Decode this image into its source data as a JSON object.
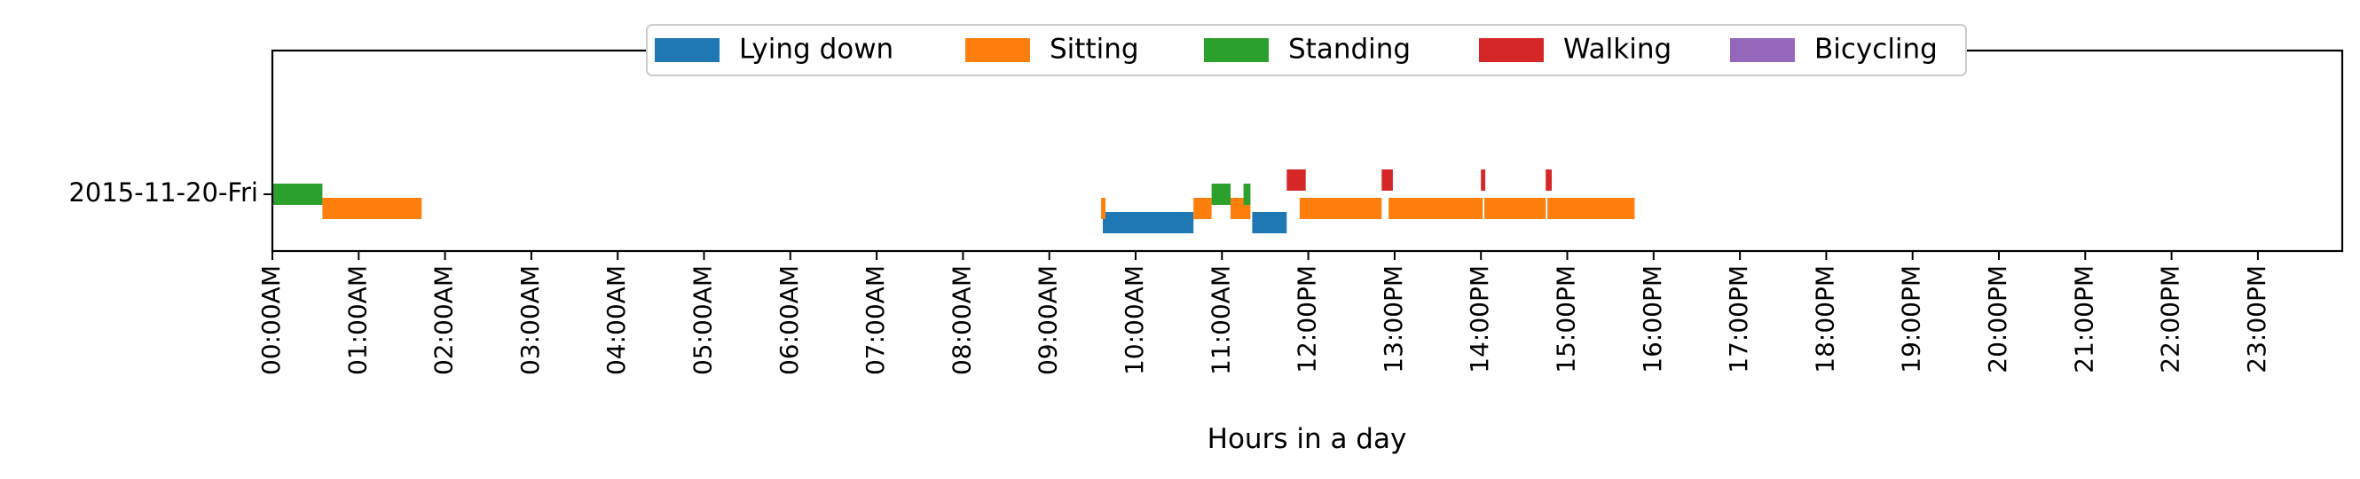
{
  "chart_data": {
    "type": "timeline",
    "title": "",
    "xlabel": "Hours in a day",
    "ylabel": "",
    "xlim_hours": [
      0,
      24
    ],
    "x_tick_labels": [
      "00:00AM",
      "01:00AM",
      "02:00AM",
      "03:00AM",
      "04:00AM",
      "05:00AM",
      "06:00AM",
      "07:00AM",
      "08:00AM",
      "09:00AM",
      "10:00AM",
      "11:00AM",
      "12:00PM",
      "13:00PM",
      "14:00PM",
      "15:00PM",
      "16:00PM",
      "17:00PM",
      "18:00PM",
      "19:00PM",
      "20:00PM",
      "21:00PM",
      "22:00PM",
      "23:00PM"
    ],
    "y_categories": [
      "2015-11-20-Fri"
    ],
    "legend_position": "top-center",
    "grid": false,
    "series": [
      {
        "name": "Lying down",
        "color": "#1f77b4",
        "level": 1,
        "intervals": [
          [
            9.62,
            10.67
          ],
          [
            11.35,
            11.75
          ]
        ]
      },
      {
        "name": "Sitting",
        "color": "#ff7f0e",
        "level": 2,
        "intervals": [
          [
            0.58,
            1.73
          ],
          [
            9.6,
            9.65
          ],
          [
            10.67,
            10.88
          ],
          [
            11.1,
            11.33
          ],
          [
            11.9,
            12.85
          ],
          [
            12.93,
            14.02
          ],
          [
            14.04,
            14.75
          ],
          [
            14.77,
            15.78
          ]
        ]
      },
      {
        "name": "Standing",
        "color": "#2ca02c",
        "level": 3,
        "intervals": [
          [
            0.0,
            0.58
          ],
          [
            10.88,
            11.1
          ],
          [
            11.25,
            11.33
          ]
        ]
      },
      {
        "name": "Walking",
        "color": "#d62728",
        "level": 4,
        "intervals": [
          [
            11.75,
            11.97
          ],
          [
            12.85,
            12.98
          ],
          [
            14.0,
            14.05
          ],
          [
            14.75,
            14.82
          ]
        ]
      },
      {
        "name": "Bicycling",
        "color": "#9467bd",
        "level": 5,
        "intervals": []
      }
    ]
  }
}
